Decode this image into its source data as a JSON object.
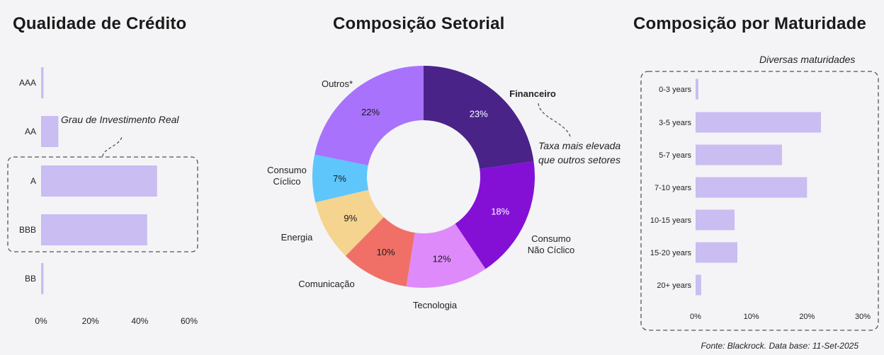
{
  "titles": {
    "credit": "Qualidade de Crédito",
    "sector": "Composição Setorial",
    "maturity": "Composição por Maturidade"
  },
  "annotations": {
    "credit_note": "Grau de Investimento Real",
    "sector_note_line1": "Taxa mais elevada",
    "sector_note_line2": "que outros setores",
    "maturity_note": "Diversas maturidades"
  },
  "footnote": "Fonte: Blackrock. Data base: 11-Set-2025",
  "colors": {
    "bar": "#c9bdf2",
    "dashed": "#555555"
  },
  "chart_data": [
    {
      "type": "bar",
      "orientation": "horizontal",
      "title": "Qualidade de Crédito",
      "categories": [
        "AAA",
        "AA",
        "A",
        "BBB",
        "BB"
      ],
      "values": [
        1,
        7,
        47,
        43,
        1
      ],
      "xlim": [
        0,
        60
      ],
      "xticks": [
        "0%",
        "20%",
        "40%",
        "60%"
      ],
      "xtick_values": [
        0,
        20,
        40,
        60
      ]
    },
    {
      "type": "pie",
      "donut": true,
      "title": "Composição Setorial",
      "categories": [
        "Financeiro",
        "Consumo Não Cíclico",
        "Tecnologia",
        "Comunicação",
        "Energia",
        "Consumo Cíclico",
        "Outros*"
      ],
      "label_lines": [
        [
          "Financeiro"
        ],
        [
          "Consumo",
          "Não Cíclico"
        ],
        [
          "Tecnologia"
        ],
        [
          "Comunicação"
        ],
        [
          "Energia"
        ],
        [
          "Consumo",
          "Cíclico"
        ],
        [
          "Outros*"
        ]
      ],
      "values": [
        23,
        18,
        12,
        10,
        9,
        7,
        22
      ],
      "value_labels": [
        "23%",
        "18%",
        "12%",
        "10%",
        "9%",
        "7%",
        "22%"
      ],
      "colors": [
        "#4a2389",
        "#8410d6",
        "#de8afb",
        "#f07068",
        "#f5d48f",
        "#5ec6fb",
        "#a872fd"
      ],
      "value_text_colors": [
        "#ffffff",
        "#ffffff",
        "#1a1a1a",
        "#1a1a1a",
        "#1a1a1a",
        "#1a1a1a",
        "#1a1a1a"
      ],
      "bold_category": "Financeiro"
    },
    {
      "type": "bar",
      "orientation": "horizontal",
      "title": "Composição por Maturidade",
      "categories": [
        "0-3 years",
        "3-5 years",
        "5-7 years",
        "7-10 years",
        "10-15 years",
        "15-20 years",
        "20+ years"
      ],
      "values": [
        0.5,
        22.5,
        15.5,
        20,
        7,
        7.5,
        1
      ],
      "xlim": [
        0,
        30
      ],
      "xticks": [
        "0%",
        "10%",
        "20%",
        "30%"
      ],
      "xtick_values": [
        0,
        10,
        20,
        30
      ]
    }
  ]
}
